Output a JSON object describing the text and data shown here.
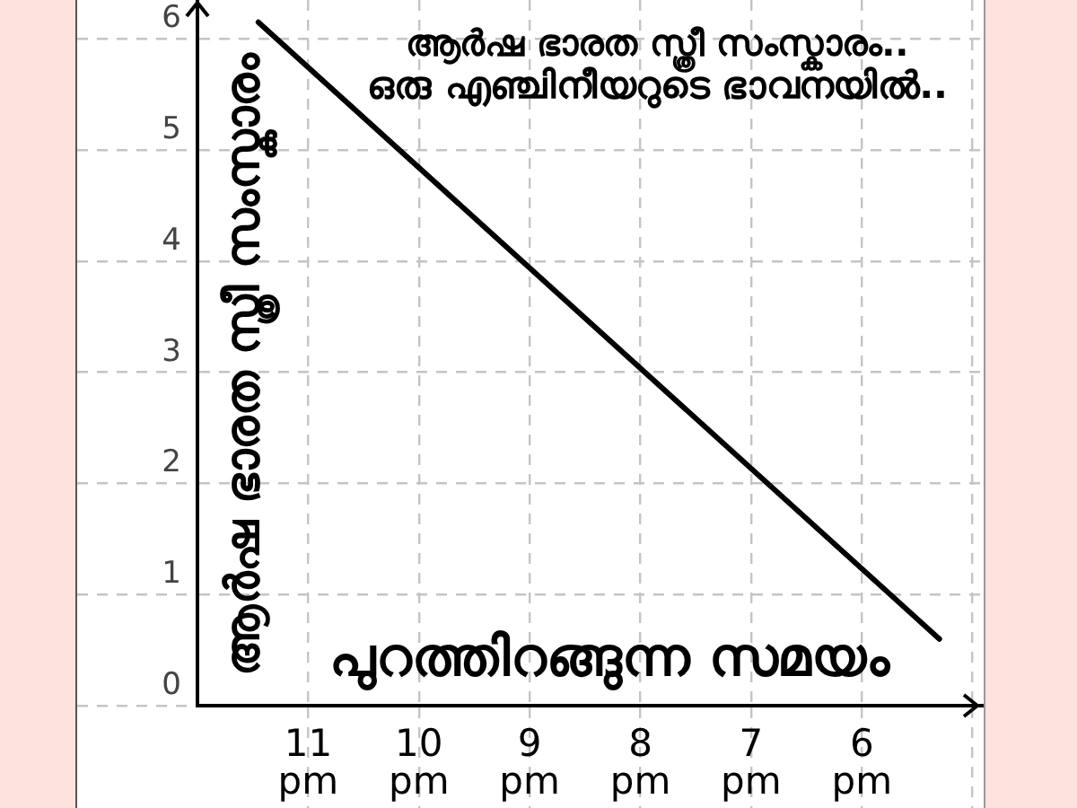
{
  "chart_data": {
    "type": "line",
    "title": "ആർഷ ഭാരത സ്ത്രീ സംസ്കാരം..",
    "subtitle": "ഒരു എഞ്ചിനീയറുടെ ഭാവനയിൽ..",
    "xlabel": "പുറത്തിറങ്ങുന്ന സമയം",
    "ylabel": "ആർഷ ഭാരത സ്ത്രീ സംസ്കാരം",
    "x": [
      11.45,
      5.3
    ],
    "values": [
      6.15,
      0.6
    ],
    "color": "#000000",
    "xlim": [
      12,
      4.9
    ],
    "ylim": [
      0,
      6.35
    ],
    "xticks": [
      {
        "value": 11,
        "label": "11 pm"
      },
      {
        "value": 10,
        "label": "10 pm"
      },
      {
        "value": 9,
        "label": "9 pm"
      },
      {
        "value": 8,
        "label": "8 pm"
      },
      {
        "value": 7,
        "label": "7 pm"
      },
      {
        "value": 6,
        "label": "6 pm"
      },
      {
        "value": 5,
        "label": null
      }
    ],
    "yticks": [
      0,
      1,
      2,
      3,
      4,
      5,
      6
    ],
    "grid": true,
    "legend": false,
    "marker": "none",
    "line_style": "solid"
  }
}
